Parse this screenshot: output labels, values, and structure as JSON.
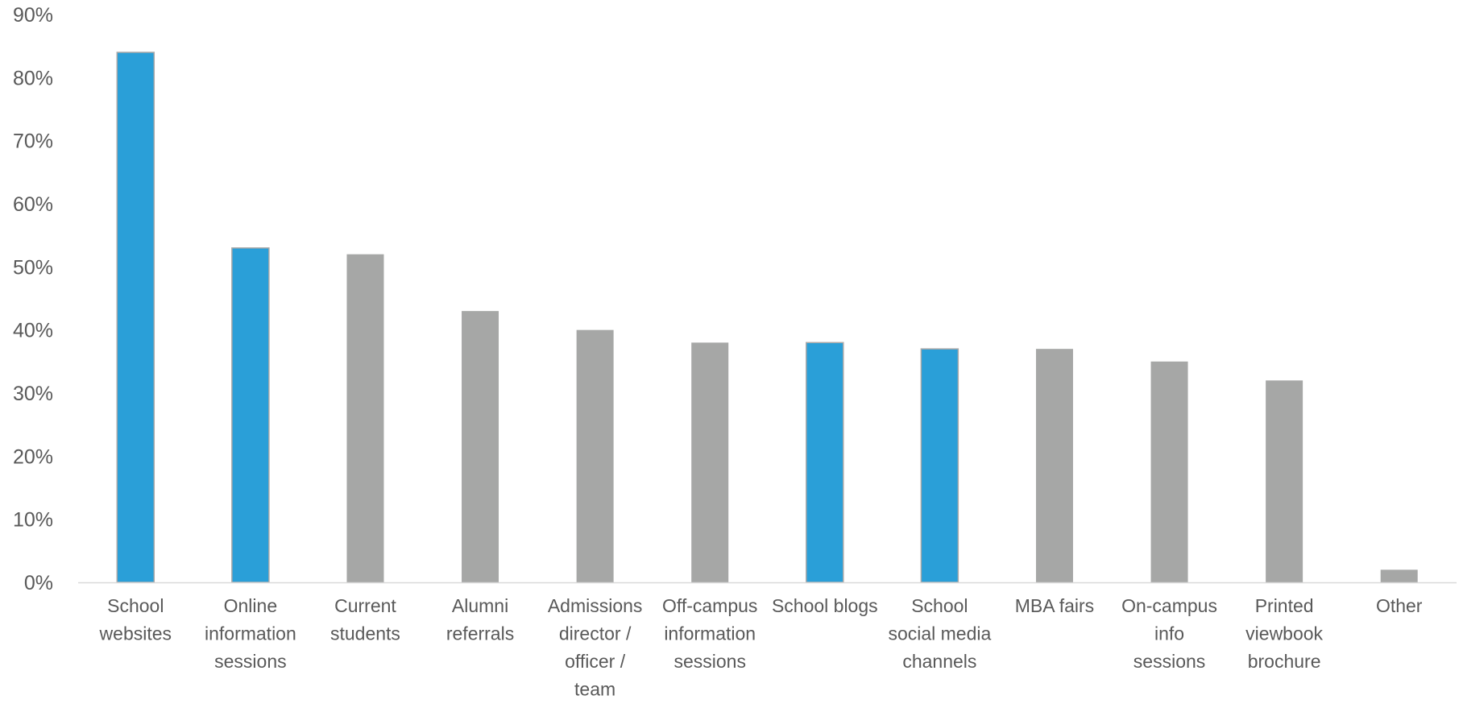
{
  "chart_data": {
    "type": "bar",
    "title": "",
    "xlabel": "",
    "ylabel": "",
    "ylim": [
      0,
      90
    ],
    "y_tick_step": 10,
    "y_tick_format": "percent",
    "grid": false,
    "legend": "none",
    "categories": [
      "School websites",
      "Online information sessions",
      "Current students",
      "Alumni referrals",
      "Admissions director / officer / team",
      "Off-campus information sessions",
      "School blogs",
      "School social media channels",
      "MBA fairs",
      "On-campus info sessions",
      "Printed viewbook brochure",
      "Other"
    ],
    "category_label_lines": [
      [
        "School",
        "websites"
      ],
      [
        "Online",
        "information",
        "sessions"
      ],
      [
        "Current",
        "students"
      ],
      [
        "Alumni",
        "referrals"
      ],
      [
        "Admissions",
        "director /",
        "officer /",
        "team"
      ],
      [
        "Off-campus",
        "information",
        "sessions"
      ],
      [
        "School blogs"
      ],
      [
        "School",
        "social media",
        "channels"
      ],
      [
        "MBA fairs"
      ],
      [
        "On-campus",
        "info",
        "sessions"
      ],
      [
        "Printed",
        "viewbook",
        "brochure"
      ],
      [
        "Other"
      ]
    ],
    "values": [
      84,
      53,
      52,
      43,
      40,
      38,
      38,
      37,
      37,
      35,
      32,
      2
    ],
    "highlighted": [
      true,
      true,
      false,
      false,
      false,
      false,
      true,
      true,
      false,
      false,
      false,
      false
    ],
    "colors": {
      "highlight": "#2A9FD8",
      "default": "#A6A7A6",
      "highlight_outline": "#A8A8A8",
      "axis": "#D9D9D9",
      "text": "#595959"
    }
  }
}
